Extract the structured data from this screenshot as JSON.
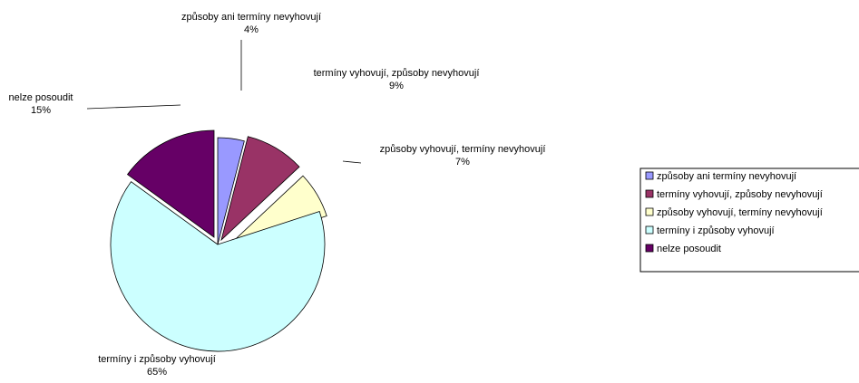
{
  "chart_data": {
    "type": "pie",
    "exploded": true,
    "start_angle_deg": 0,
    "direction": "clockwise",
    "slices": [
      {
        "label": "způsoby ani termíny nevyhovují",
        "value": 4,
        "percent_label": "4%",
        "color": "#9999FF"
      },
      {
        "label": "termíny vyhovují, způsoby nevyhovují",
        "value": 9,
        "percent_label": "9%",
        "color": "#993366"
      },
      {
        "label": "způsoby vyhovují, termíny nevyhovují",
        "value": 7,
        "percent_label": "7%",
        "color": "#FFFFCC"
      },
      {
        "label": "termíny i způsoby vyhovují",
        "value": 65,
        "percent_label": "65%",
        "color": "#CCFFFF"
      },
      {
        "label": "nelze posoudit",
        "value": 15,
        "percent_label": "15%",
        "color": "#660066"
      }
    ],
    "legend_position": "right"
  }
}
